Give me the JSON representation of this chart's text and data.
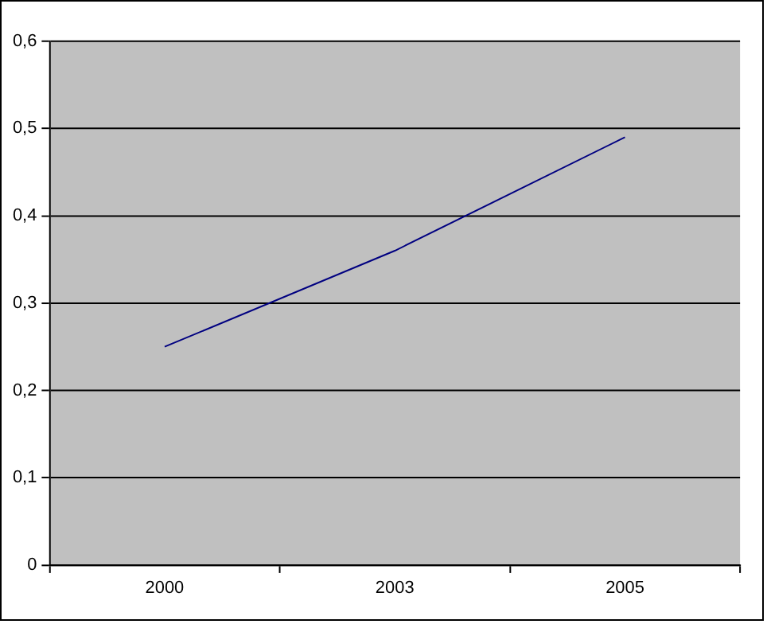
{
  "chart_data": {
    "type": "line",
    "categories": [
      "2000",
      "2003",
      "2005"
    ],
    "series": [
      {
        "color": "#000080",
        "values": [
          0.25,
          0.36,
          0.49
        ]
      }
    ],
    "ylim": [
      0,
      0.6
    ],
    "yticks": [
      0,
      {
        "value": 0.1,
        "label": "0,1"
      },
      {
        "value": 0.2,
        "label": "0,2"
      },
      {
        "value": 0.3,
        "label": "0,3"
      },
      {
        "value": 0.4,
        "label": "0,4"
      },
      {
        "value": 0.5,
        "label": "0,5"
      },
      {
        "value": 0.6,
        "label": "0,6"
      }
    ],
    "grid": "y",
    "legend": false,
    "marker": "none",
    "line_style": "solid"
  }
}
